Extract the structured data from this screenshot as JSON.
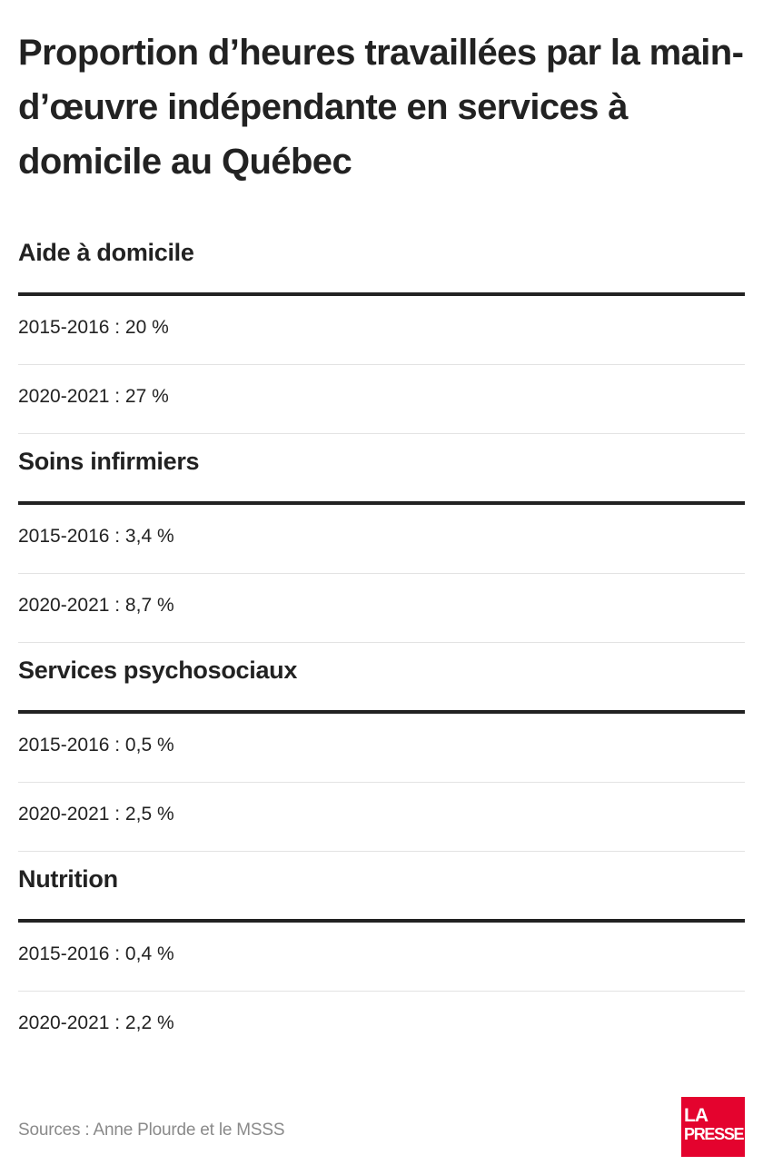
{
  "title": "Proportion d’heures travaillées par la main-d’œuvre indépendante en services à domicile au Québec",
  "chart_data": {
    "type": "table",
    "title": "Proportion d’heures travaillées par la main-d’œuvre indépendante en services à domicile au Québec",
    "unit": "%",
    "categories": [
      "Aide à domicile",
      "Soins infirmiers",
      "Services psychosociaux",
      "Nutrition"
    ],
    "series": [
      {
        "name": "2015-2016",
        "values": [
          20,
          3.4,
          0.5,
          0.4
        ]
      },
      {
        "name": "2020-2021",
        "values": [
          27,
          8.7,
          2.5,
          2.2
        ]
      }
    ]
  },
  "sections": [
    {
      "heading": "Aide à domicile",
      "rows": [
        "2015-2016 : 20 %",
        "2020-2021 : 27 %"
      ]
    },
    {
      "heading": "Soins infirmiers",
      "rows": [
        "2015-2016 : 3,4 %",
        "2020-2021 : 8,7 %"
      ]
    },
    {
      "heading": "Services psychosociaux",
      "rows": [
        "2015-2016 : 0,5 %",
        "2020-2021 : 2,5 %"
      ]
    },
    {
      "heading": "Nutrition",
      "rows": [
        "2015-2016 : 0,4 %",
        "2020-2021 : 2,2 %"
      ]
    }
  ],
  "footer": {
    "source": "Sources : Anne Plourde et le MSSS",
    "logo_line1": "LA",
    "logo_line2": "PRESSE",
    "logo_color": "#e4032e"
  }
}
